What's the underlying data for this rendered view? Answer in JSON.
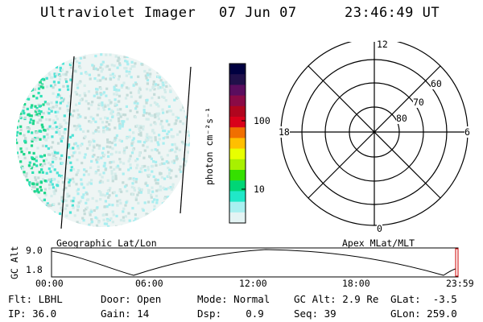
{
  "header": {
    "instrument": "Ultraviolet Imager",
    "date": "07 Jun 07",
    "time": "23:46:49 UT"
  },
  "image_panel": {
    "projection_label": "Geographic Lat/Lon"
  },
  "colorbar": {
    "unit_label": "photon cm⁻²s⁻¹",
    "scale": "log",
    "tick_labels": [
      "100",
      "10"
    ],
    "colors": [
      "#000040",
      "#20104a",
      "#5a0d5e",
      "#8a0a46",
      "#b0051e",
      "#d9001a",
      "#f06f00",
      "#ffbf00",
      "#e8ff00",
      "#a8f000",
      "#35e000",
      "#00d676",
      "#20e8c8",
      "#a8f0f0",
      "#e4f4f4"
    ]
  },
  "polar_panel": {
    "label": "Apex MLat/MLT",
    "mlt_labels": {
      "top": "12",
      "left": "18",
      "right": "6",
      "bottom": "0"
    },
    "mlat_labels": [
      "60",
      "70",
      "80"
    ]
  },
  "altitude_plot": {
    "ylabel": "GC Alt",
    "yticks": [
      "9.0",
      "1.8"
    ],
    "xticks": [
      "00:00",
      "06:00",
      "12:00",
      "18:00",
      "23:59"
    ]
  },
  "info": {
    "row1": [
      {
        "key": "Flt:",
        "value": "LBHL"
      },
      {
        "key": "Door:",
        "value": "Open"
      },
      {
        "key": "Mode:",
        "value": "Normal"
      },
      {
        "key": "GC Alt:",
        "value": "2.9 Re"
      },
      {
        "key": "GLat:",
        "value": "-3.5"
      }
    ],
    "row2": [
      {
        "key": "IP:",
        "value": "36.0"
      },
      {
        "key": "Gain:",
        "value": "14"
      },
      {
        "key": "Dsp:",
        "value": "0.9"
      },
      {
        "key": "Seq:",
        "value": "39"
      },
      {
        "key": "GLon:",
        "value": "259.0"
      }
    ]
  }
}
